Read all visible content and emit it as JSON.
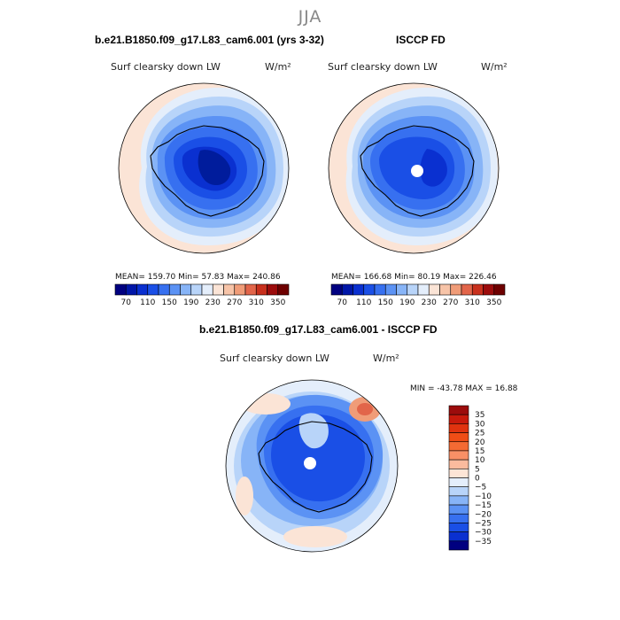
{
  "page": {
    "season": "JJA"
  },
  "chart_data": [
    {
      "type": "heatmap",
      "projection": "south-polar-stereographic",
      "title": "b.e21.B1850.f09_g17.L83_cam6.001 (yrs 3-32)",
      "label_left": "Surf clearsky down LW",
      "label_right": "W/m²",
      "stats_text": "MEAN= 159.70  Min=  57.83  Max= 240.86",
      "mean": 159.7,
      "min": 57.83,
      "max": 240.86,
      "colorbar": {
        "orientation": "horizontal",
        "levels": [
          70,
          90,
          110,
          130,
          150,
          170,
          190,
          210,
          230,
          250,
          270,
          290,
          310,
          330,
          350
        ],
        "tick_labels": [
          "70",
          "110",
          "150",
          "190",
          "230",
          "270",
          "310",
          "350"
        ],
        "colors": [
          "#000080",
          "#0016a8",
          "#0a30d0",
          "#1a4fe6",
          "#3770f0",
          "#5b92f4",
          "#87b4f7",
          "#b8d4f9",
          "#e4eefb",
          "#fbe4d6",
          "#f7c4a8",
          "#f09c78",
          "#e2654a",
          "#c8301d",
          "#9c0c0c",
          "#6e0000"
        ]
      }
    },
    {
      "type": "heatmap",
      "projection": "south-polar-stereographic",
      "title": "ISCCP FD",
      "label_left": "Surf clearsky down LW",
      "label_right": "W/m²",
      "stats_text": "MEAN= 166.68  Min=  80.19  Max= 226.46",
      "mean": 166.68,
      "min": 80.19,
      "max": 226.46,
      "colorbar": {
        "orientation": "horizontal",
        "levels": [
          70,
          90,
          110,
          130,
          150,
          170,
          190,
          210,
          230,
          250,
          270,
          290,
          310,
          330,
          350
        ],
        "tick_labels": [
          "70",
          "110",
          "150",
          "190",
          "230",
          "270",
          "310",
          "350"
        ],
        "colors": [
          "#000080",
          "#0016a8",
          "#0a30d0",
          "#1a4fe6",
          "#3770f0",
          "#5b92f4",
          "#87b4f7",
          "#b8d4f9",
          "#e4eefb",
          "#fbe4d6",
          "#f7c4a8",
          "#f09c78",
          "#e2654a",
          "#c8301d",
          "#9c0c0c",
          "#6e0000"
        ]
      }
    },
    {
      "type": "heatmap",
      "projection": "south-polar-stereographic",
      "title": "b.e21.B1850.f09_g17.L83_cam6.001 - ISCCP FD",
      "label_left": "Surf clearsky down LW",
      "label_right": "W/m²",
      "stats_text": "MIN = -43.78 MAX =  16.88",
      "min": -43.78,
      "max": 16.88,
      "colorbar": {
        "orientation": "vertical",
        "levels": [
          35,
          30,
          25,
          20,
          15,
          10,
          5,
          0,
          -5,
          -10,
          -15,
          -20,
          -25,
          -30,
          -35
        ],
        "tick_labels": [
          "35",
          "30",
          "25",
          "20",
          "15",
          "10",
          "5",
          "0",
          "−5",
          "−10",
          "−15",
          "−20",
          "−25",
          "−30",
          "−35"
        ],
        "colors": [
          "#9c0c0c",
          "#c81a0c",
          "#e0330f",
          "#f04d16",
          "#f46a33",
          "#f89066",
          "#fbbb9e",
          "#fde5d6",
          "#e4eefb",
          "#b8d4f9",
          "#87b4f7",
          "#5b92f4",
          "#3770f0",
          "#1a4fe6",
          "#0a30d0",
          "#000080"
        ]
      }
    }
  ]
}
